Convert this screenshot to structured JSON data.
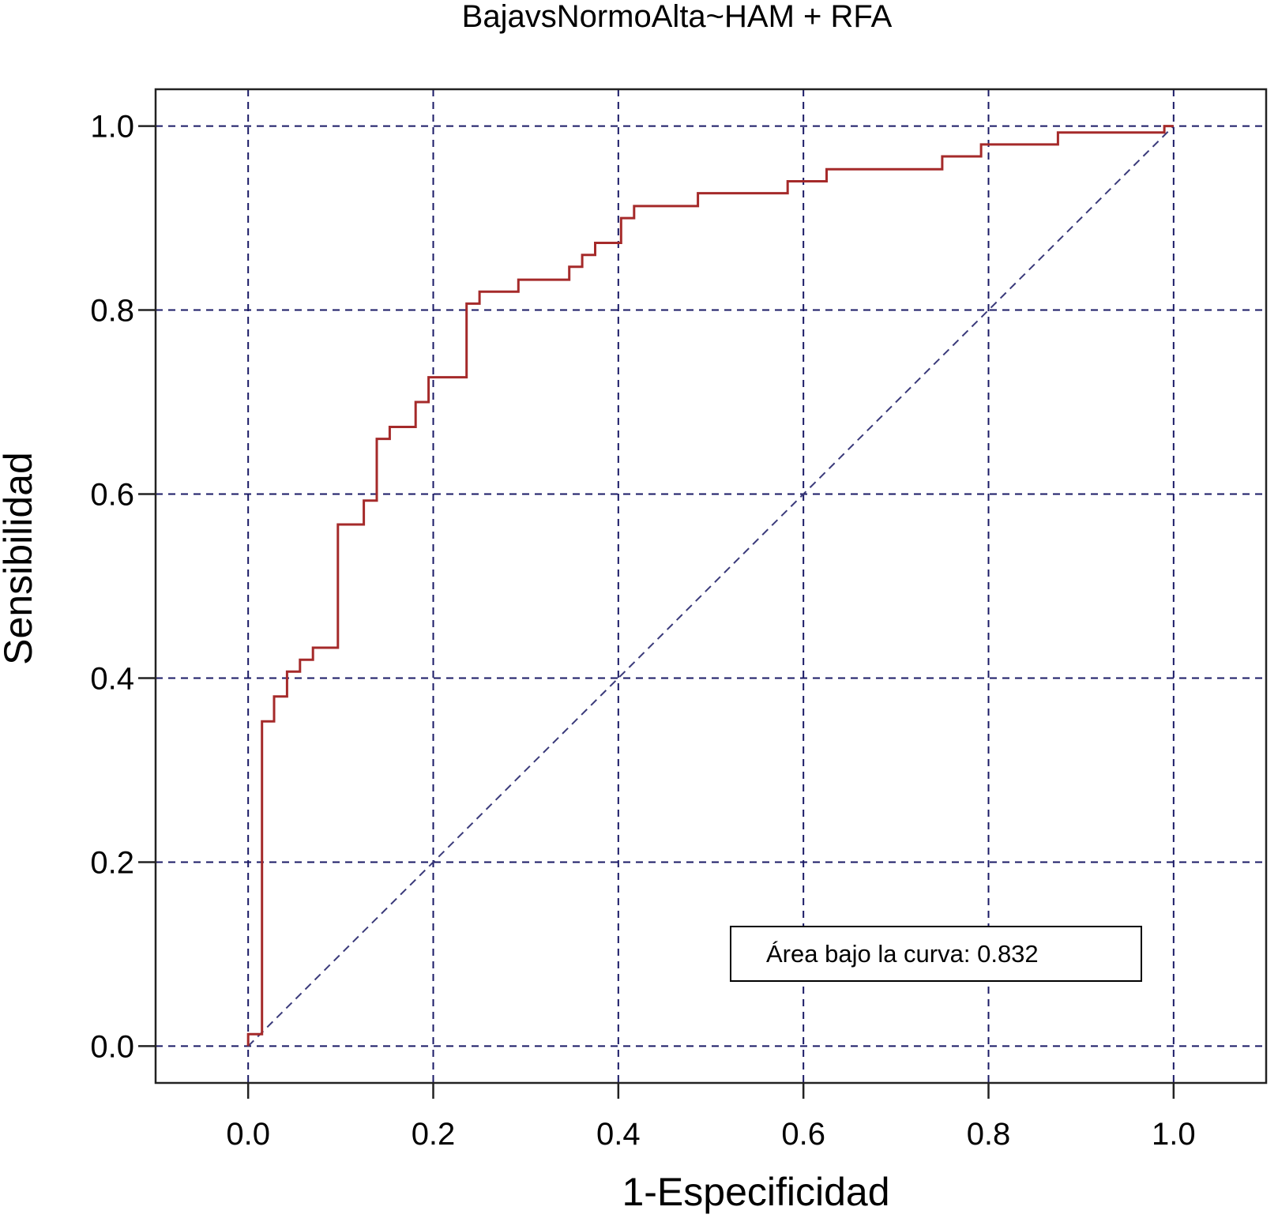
{
  "chart_data": {
    "type": "line",
    "title": "BajavsNormoAlta~HAM + RFA",
    "xlabel": "1-Especificidad",
    "ylabel": "Sensibilidad",
    "xlim": [
      -0.1,
      1.1
    ],
    "ylim": [
      -0.04,
      1.04
    ],
    "xticks": [
      "0.0",
      "0.2",
      "0.4",
      "0.6",
      "0.8",
      "1.0"
    ],
    "yticks": [
      "0.0",
      "0.2",
      "0.4",
      "0.6",
      "0.8",
      "1.0"
    ],
    "grid": true,
    "annotation": "Área bajo la curva: 0.832",
    "colors": {
      "curve": "#a52a2a",
      "grid": "#1a1a66",
      "diagonal": "#3a3a7a"
    },
    "series": [
      {
        "type": "step",
        "x": [
          0.0,
          0.0,
          0.015,
          0.015,
          0.028,
          0.028,
          0.042,
          0.042,
          0.056,
          0.056,
          0.07,
          0.07,
          0.097,
          0.097,
          0.125,
          0.125,
          0.139,
          0.139,
          0.153,
          0.153,
          0.181,
          0.181,
          0.195,
          0.195,
          0.236,
          0.236,
          0.25,
          0.25,
          0.292,
          0.292,
          0.347,
          0.347,
          0.361,
          0.361,
          0.375,
          0.375,
          0.403,
          0.403,
          0.417,
          0.417,
          0.486,
          0.486,
          0.583,
          0.583,
          0.625,
          0.625,
          0.75,
          0.75,
          0.792,
          0.792,
          0.875,
          0.875,
          0.99,
          0.99,
          1.0
        ],
        "y": [
          0.0,
          0.013,
          0.013,
          0.353,
          0.353,
          0.38,
          0.38,
          0.407,
          0.407,
          0.42,
          0.42,
          0.433,
          0.433,
          0.567,
          0.567,
          0.593,
          0.593,
          0.66,
          0.66,
          0.673,
          0.673,
          0.7,
          0.7,
          0.727,
          0.727,
          0.807,
          0.807,
          0.82,
          0.82,
          0.833,
          0.833,
          0.847,
          0.847,
          0.86,
          0.86,
          0.873,
          0.873,
          0.9,
          0.9,
          0.913,
          0.913,
          0.927,
          0.927,
          0.94,
          0.94,
          0.953,
          0.953,
          0.967,
          0.967,
          0.98,
          0.98,
          0.993,
          0.993,
          1.0,
          1.0
        ]
      },
      {
        "type": "line",
        "x": [
          0.0,
          1.0
        ],
        "y": [
          0.0,
          1.0
        ]
      }
    ]
  }
}
